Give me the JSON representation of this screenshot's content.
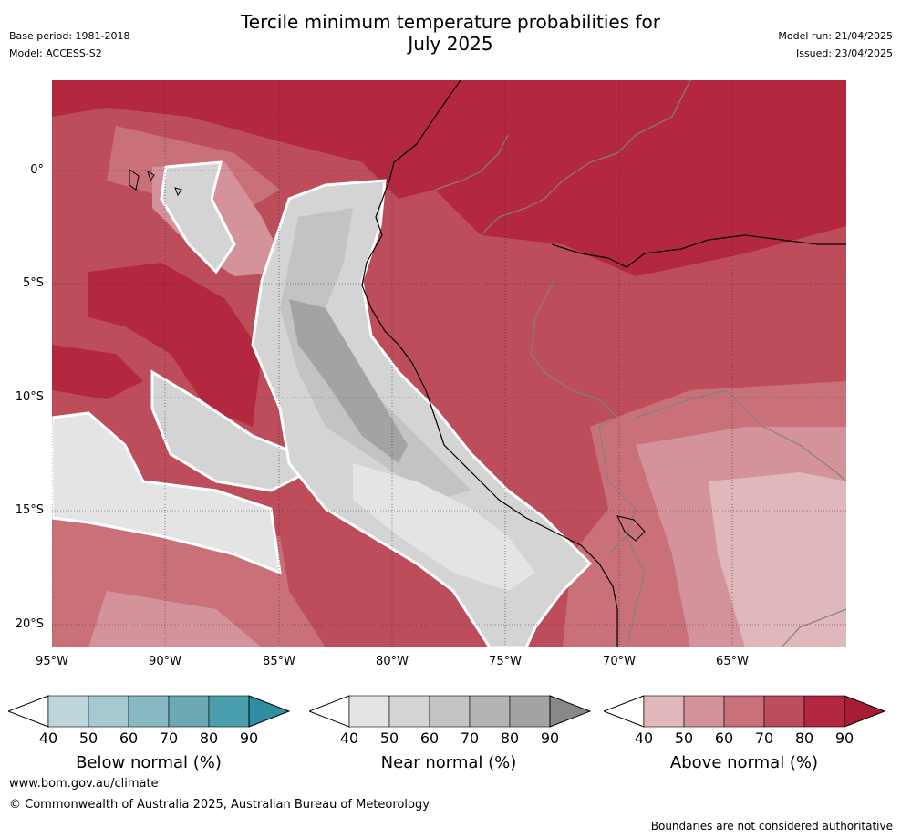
{
  "header": {
    "title_line1": "Tercile minimum temperature probabilities for",
    "title_line2": "July 2025",
    "base_period": "Base period: 1981-2018",
    "model": "Model: ACCESS-S2",
    "model_run": "Model run: 21/04/2025",
    "issued": "Issued: 23/04/2025"
  },
  "map": {
    "lat_labels": [
      "0°",
      "5°S",
      "10°S",
      "15°S",
      "20°S"
    ],
    "lon_labels": [
      "95°W",
      "90°W",
      "85°W",
      "80°W",
      "75°W",
      "70°W",
      "65°W"
    ],
    "colors": {
      "above": [
        "#e0b8bc",
        "#d4939a",
        "#c97079",
        "#be4d5c",
        "#b3283e"
      ],
      "near": [
        "#e4e4e4",
        "#d4d4d4",
        "#c3c3c3",
        "#b4b4b4",
        "#a3a3a3"
      ],
      "coast": "#000000",
      "border": "#808080"
    }
  },
  "legends": [
    {
      "title": "Below normal (%)",
      "ticks": [
        "40",
        "50",
        "60",
        "70",
        "80",
        "90"
      ],
      "colors": [
        "#bcd6dc",
        "#a5c9d0",
        "#88b9c3",
        "#6baab5",
        "#4a9fae",
        "#2e8ea2"
      ]
    },
    {
      "title": "Near normal (%)",
      "ticks": [
        "40",
        "50",
        "60",
        "70",
        "80",
        "90"
      ],
      "colors": [
        "#e4e4e4",
        "#d4d4d4",
        "#c3c3c3",
        "#b4b4b4",
        "#a3a3a3",
        "#888888"
      ]
    },
    {
      "title": "Above normal (%)",
      "ticks": [
        "40",
        "50",
        "60",
        "70",
        "80",
        "90"
      ],
      "colors": [
        "#e0b8bc",
        "#d4939a",
        "#c97079",
        "#be4d5c",
        "#b3283e",
        "#a81c36"
      ]
    }
  ],
  "footer": {
    "website": "www.bom.gov.au/climate",
    "copyright": "© Commonwealth of Australia 2025, Australian Bureau of Meteorology",
    "disclaimer": "Boundaries are not considered authoritative"
  }
}
